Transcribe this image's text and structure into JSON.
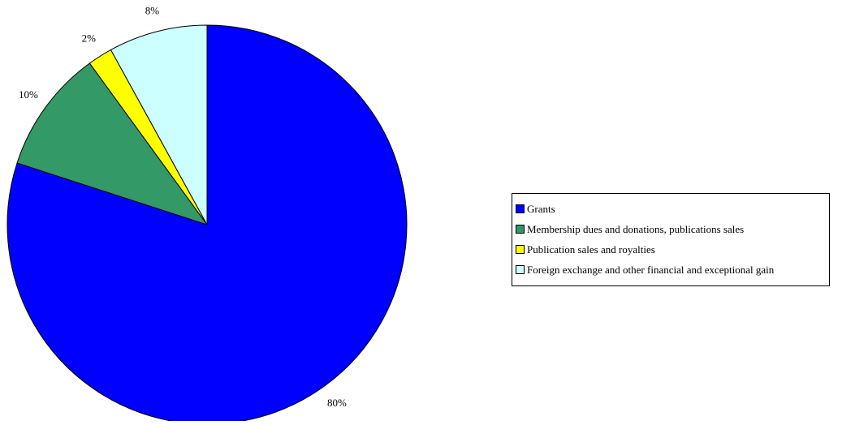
{
  "chart_data": {
    "type": "pie",
    "title": "",
    "start_angle_deg": 0,
    "direction": "clockwise",
    "slices": [
      {
        "label": "Grants",
        "value": 80,
        "display": "80%",
        "color": "#0000FF"
      },
      {
        "label": "Membership dues and donations, publications sales",
        "value": 10,
        "display": "10%",
        "color": "#339966"
      },
      {
        "label": "Publication sales and royalties",
        "value": 2,
        "display": "2%",
        "color": "#FFFF00"
      },
      {
        "label": "Foreign exchange and other financial and exceptional gain",
        "value": 8,
        "display": "8%",
        "color": "#CCFFFF"
      }
    ],
    "legend_position": "right"
  }
}
